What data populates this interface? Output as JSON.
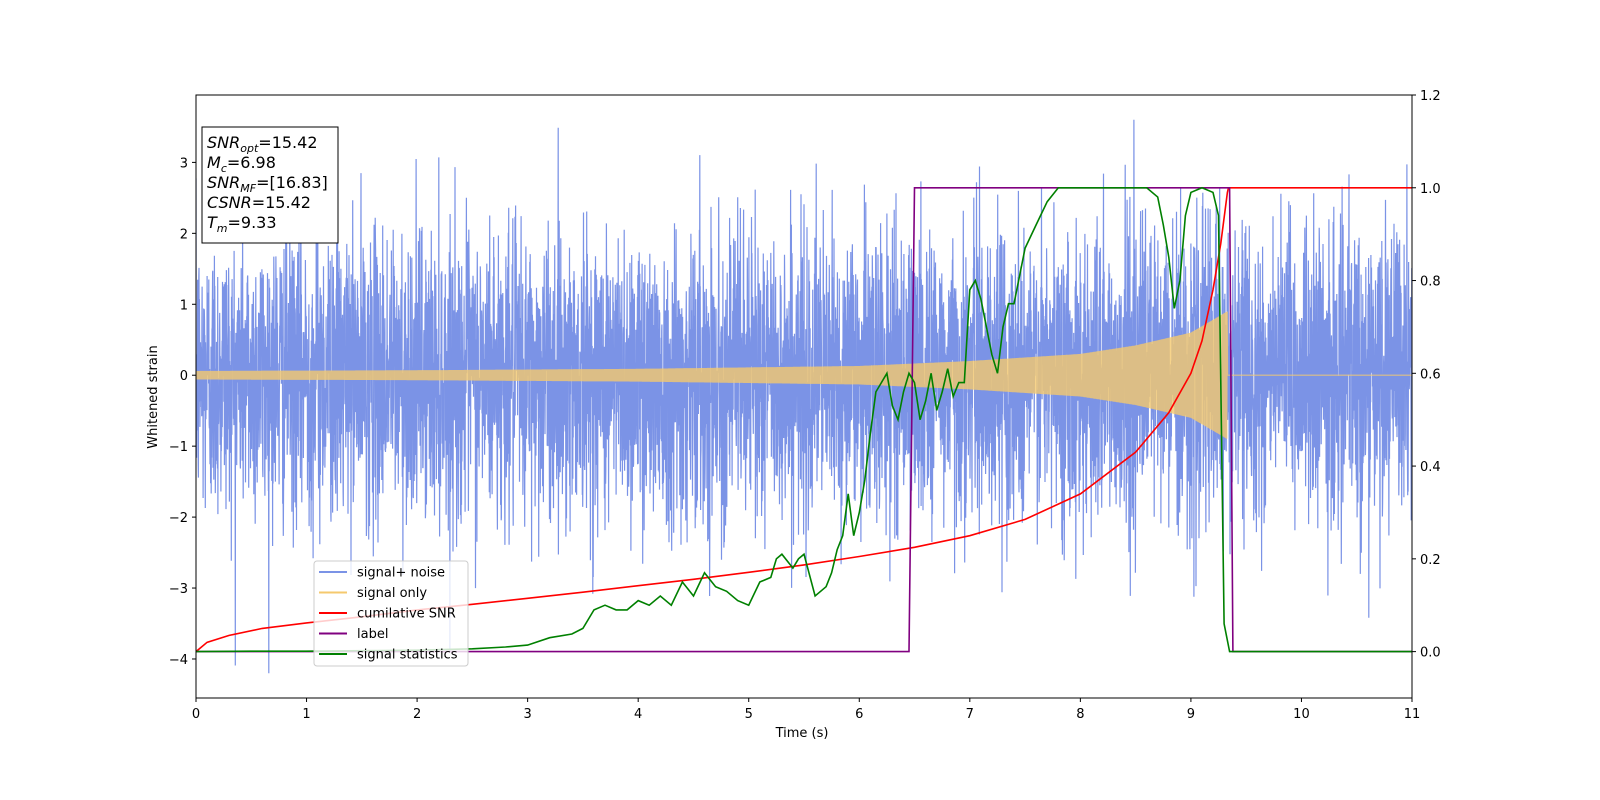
{
  "chart_data": {
    "type": "line",
    "title": "",
    "xlabel": "Time (s)",
    "ylabel": "Whitened strain",
    "xlim": [
      0,
      11
    ],
    "ylim": [
      -4.55,
      3.95
    ],
    "y2lim": [
      -0.1,
      1.2
    ],
    "xticks": [
      "0",
      "1",
      "2",
      "3",
      "4",
      "5",
      "6",
      "7",
      "8",
      "9",
      "10",
      "11"
    ],
    "yticks": [
      "−4",
      "−3",
      "−2",
      "−1",
      "0",
      "1",
      "2",
      "3"
    ],
    "y2ticks": [
      "0.0",
      "0.2",
      "0.4",
      "0.6",
      "0.8",
      "1.0",
      "1.2"
    ],
    "grid": false,
    "legend_position": "lower-left",
    "info_box": {
      "lines": [
        {
          "sym": "SNR",
          "sub": "opt",
          "value": "=15.42"
        },
        {
          "sym": "M",
          "sub": "c",
          "value": "=6.98"
        },
        {
          "sym": "SNR",
          "sub": "MF",
          "value": "=[16.83]"
        },
        {
          "sym": "CSNR",
          "sub": "",
          "value": "=15.42"
        },
        {
          "sym": "T",
          "sub": "m",
          "value": "=9.33"
        }
      ]
    },
    "series": [
      {
        "name": "signal+ noise",
        "color": "#7b93e6",
        "axis": "left",
        "noise_std": 1.0,
        "signal_end": 9.33
      },
      {
        "name": "signal only",
        "color": "#f5c96e",
        "axis": "left",
        "envelope_x": [
          0,
          2,
          4,
          6,
          7,
          8,
          8.5,
          9,
          9.2,
          9.33
        ],
        "envelope_y": [
          0.06,
          0.07,
          0.09,
          0.13,
          0.2,
          0.3,
          0.42,
          0.6,
          0.78,
          0.9
        ]
      },
      {
        "name": "cumilative SNR",
        "color": "#ff0000",
        "axis": "right",
        "x": [
          0,
          0.1,
          0.3,
          0.6,
          1,
          1.5,
          2,
          2.5,
          3,
          3.5,
          4,
          4.5,
          5,
          5.5,
          6,
          6.5,
          7,
          7.5,
          8,
          8.5,
          8.8,
          9,
          9.1,
          9.2,
          9.27,
          9.33,
          9.34,
          11
        ],
        "y": [
          0.0,
          0.02,
          0.035,
          0.05,
          0.062,
          0.075,
          0.09,
          0.102,
          0.115,
          0.128,
          0.142,
          0.156,
          0.171,
          0.187,
          0.205,
          0.225,
          0.25,
          0.285,
          0.34,
          0.43,
          0.515,
          0.6,
          0.67,
          0.78,
          0.88,
          0.99,
          1.0,
          1.0
        ]
      },
      {
        "name": "label",
        "color": "#800080",
        "axis": "right",
        "x": [
          0,
          6.45,
          6.5,
          9.35,
          9.38,
          11
        ],
        "y": [
          0,
          0,
          1,
          1,
          0,
          0
        ]
      },
      {
        "name": "signal statistics",
        "color": "#008000",
        "axis": "right",
        "x": [
          0,
          0.5,
          1,
          1.5,
          2,
          2.5,
          2.8,
          3,
          3.2,
          3.4,
          3.5,
          3.6,
          3.7,
          3.8,
          3.9,
          4,
          4.1,
          4.2,
          4.3,
          4.4,
          4.5,
          4.6,
          4.7,
          4.8,
          4.9,
          5,
          5.1,
          5.2,
          5.25,
          5.3,
          5.4,
          5.45,
          5.5,
          5.6,
          5.7,
          5.75,
          5.8,
          5.85,
          5.9,
          5.95,
          6,
          6.05,
          6.1,
          6.15,
          6.2,
          6.25,
          6.3,
          6.35,
          6.4,
          6.45,
          6.5,
          6.55,
          6.6,
          6.65,
          6.7,
          6.75,
          6.8,
          6.85,
          6.9,
          6.95,
          7,
          7.05,
          7.1,
          7.15,
          7.2,
          7.25,
          7.3,
          7.35,
          7.4,
          7.5,
          7.6,
          7.7,
          7.8,
          7.9,
          8,
          8.2,
          8.4,
          8.6,
          8.7,
          8.75,
          8.8,
          8.85,
          8.9,
          8.95,
          9,
          9.1,
          9.2,
          9.25,
          9.3,
          9.35,
          9.4,
          10,
          11
        ],
        "y": [
          0,
          0.001,
          0.001,
          0.002,
          0.003,
          0.006,
          0.01,
          0.014,
          0.03,
          0.038,
          0.05,
          0.09,
          0.1,
          0.09,
          0.09,
          0.11,
          0.1,
          0.12,
          0.1,
          0.15,
          0.12,
          0.17,
          0.14,
          0.13,
          0.11,
          0.1,
          0.15,
          0.16,
          0.2,
          0.21,
          0.18,
          0.2,
          0.21,
          0.12,
          0.14,
          0.17,
          0.22,
          0.25,
          0.34,
          0.25,
          0.3,
          0.37,
          0.47,
          0.56,
          0.58,
          0.6,
          0.53,
          0.5,
          0.56,
          0.6,
          0.58,
          0.5,
          0.54,
          0.6,
          0.52,
          0.56,
          0.61,
          0.55,
          0.58,
          0.58,
          0.78,
          0.8,
          0.76,
          0.7,
          0.64,
          0.6,
          0.7,
          0.75,
          0.75,
          0.87,
          0.92,
          0.97,
          1.0,
          1.0,
          1.0,
          1.0,
          1.0,
          1.0,
          0.98,
          0.92,
          0.85,
          0.74,
          0.8,
          0.94,
          0.99,
          1.0,
          0.99,
          0.94,
          0.06,
          0.0,
          0.0,
          0.0,
          0.0
        ]
      }
    ]
  }
}
